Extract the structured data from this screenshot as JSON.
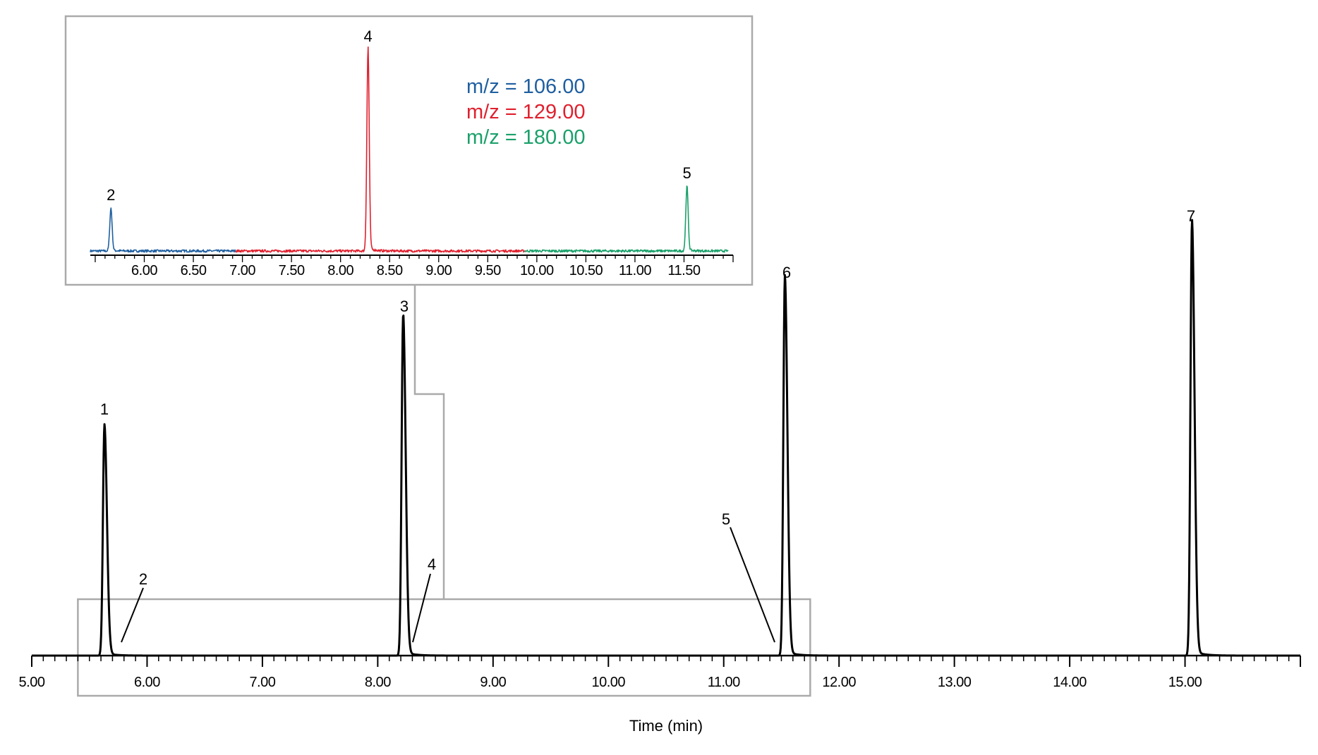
{
  "chart_data": [
    {
      "type": "line",
      "xlabel": "Time (min)",
      "ylabel": "",
      "xlim": [
        5.0,
        16.0
      ],
      "x_ticks": [
        "5.00",
        "6.00",
        "7.00",
        "8.00",
        "9.00",
        "10.00",
        "11.00",
        "12.00",
        "13.00",
        "14.00",
        "15.00"
      ],
      "y_visible": false,
      "grid": false,
      "series": [
        {
          "color": "#000000",
          "peaks": [
            {
              "label": "1",
              "x": 5.63,
              "height": 0.87
            },
            {
              "label": "2",
              "x": 5.73,
              "height": 0.0
            },
            {
              "label": "3",
              "x": 8.22,
              "height": 1.29
            },
            {
              "label": "4",
              "x": 8.29,
              "height": 0.0
            },
            {
              "label": "5",
              "x": 11.48,
              "height": 0.0
            },
            {
              "label": "6",
              "x": 11.53,
              "height": 1.43
            },
            {
              "label": "7",
              "x": 15.06,
              "height": 1.64
            }
          ]
        }
      ],
      "zoom_box_xlim": [
        5.4,
        11.75
      ]
    },
    {
      "type": "line",
      "inset": true,
      "xlim": [
        5.45,
        12.0
      ],
      "x_ticks": [
        "6.00",
        "6.50",
        "7.00",
        "7.50",
        "8.00",
        "8.50",
        "9.00",
        "9.50",
        "10.00",
        "10.50",
        "11.00",
        "11.50"
      ],
      "legend": [
        "m/z = 106.00",
        "m/z = 129.00",
        "m/z = 180.00"
      ],
      "series": [
        {
          "color": "#1f5fa0",
          "x_range": [
            5.45,
            6.93
          ],
          "peaks": [
            {
              "label": "2",
              "x": 5.66,
              "height": 0.21
            }
          ]
        },
        {
          "color": "#e0202e",
          "x_range": [
            6.93,
            9.88
          ],
          "peaks": [
            {
              "label": "4",
              "x": 8.28,
              "height": 1.0
            }
          ]
        },
        {
          "color": "#1aa06a",
          "x_range": [
            9.88,
            11.95
          ],
          "peaks": [
            {
              "label": "5",
              "x": 11.53,
              "height": 0.32
            }
          ]
        }
      ]
    }
  ]
}
